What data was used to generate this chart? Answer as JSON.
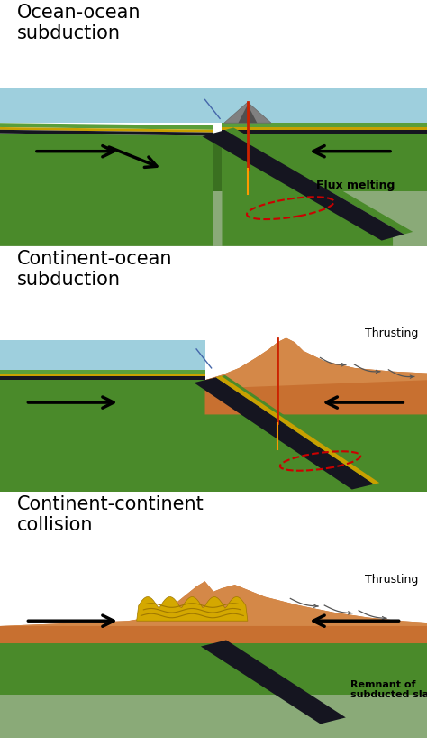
{
  "panel1_title": "Ocean-ocean\nsubduction",
  "panel2_title": "Continent-ocean\nsubduction",
  "panel3_title": "Continent-continent\ncollision",
  "panel1_label": "Flux melting",
  "panel2_label": "Thrusting",
  "panel3_label1": "Thrusting",
  "panel3_label2": "Remnant of\nsubducted slab",
  "bg_color": "#ffffff",
  "water_blue": "#9ecfdd",
  "green_upper": "#5a9e3a",
  "green_mid": "#4a8a2a",
  "green_dark": "#3a7020",
  "green_light": "#6ab84a",
  "gray_mantle": "#8aaa78",
  "gray_deep": "#a0b090",
  "slab_dark": "#151520",
  "yellow_stripe": "#c8a000",
  "orange_cont": "#c87030",
  "orange_light": "#d48848",
  "red_line": "#cc2200",
  "orange_line": "#ff9900",
  "dashed_red": "#cc0000",
  "volcano_gray": "#808080",
  "volcano_dark": "#505050",
  "thrust_color": "#555555",
  "yellow_mtn": "#d4a800",
  "yellow_mtn_dark": "#a07800"
}
